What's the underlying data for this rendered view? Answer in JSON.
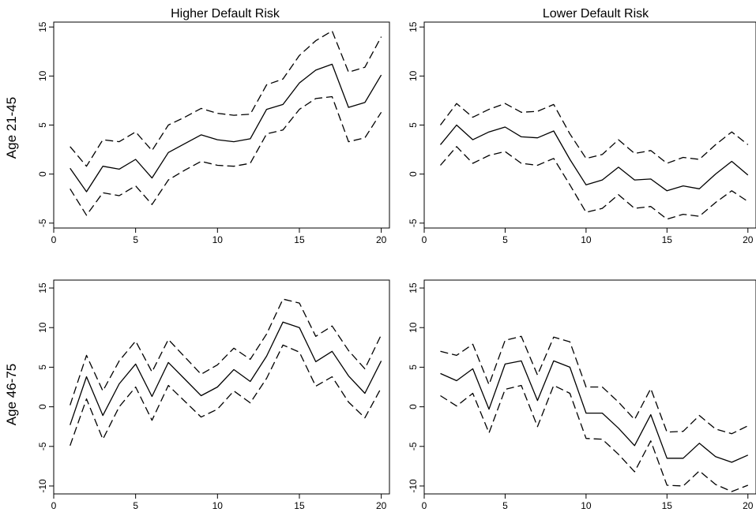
{
  "figure": {
    "column_titles": [
      "Higher Default Risk",
      "Lower Default Risk"
    ],
    "row_titles": [
      "Age 21-45",
      "Age 46-75"
    ]
  },
  "chart_data": [
    {
      "type": "line",
      "title": "Higher Default Risk",
      "row_label": "Age 21-45",
      "x": [
        1,
        2,
        3,
        4,
        5,
        6,
        7,
        8,
        9,
        10,
        11,
        12,
        13,
        14,
        15,
        16,
        17,
        18,
        19,
        20
      ],
      "series": [
        {
          "style": "solid",
          "values": [
            0.6,
            -1.8,
            0.8,
            0.5,
            1.5,
            -0.4,
            2.2,
            3.1,
            4.0,
            3.5,
            3.3,
            3.6,
            6.6,
            7.1,
            9.3,
            10.6,
            11.2,
            6.8,
            7.3,
            10.1
          ]
        },
        {
          "style": "dashed",
          "values": [
            2.8,
            0.8,
            3.5,
            3.3,
            4.3,
            2.4,
            5.0,
            5.8,
            6.7,
            6.2,
            6.0,
            6.1,
            9.1,
            9.7,
            12.1,
            13.6,
            14.6,
            10.4,
            10.9,
            14.0
          ]
        },
        {
          "style": "dashed",
          "values": [
            -1.5,
            -4.2,
            -1.9,
            -2.2,
            -1.2,
            -3.1,
            -0.6,
            0.4,
            1.3,
            0.9,
            0.8,
            1.1,
            4.1,
            4.5,
            6.6,
            7.7,
            7.9,
            3.3,
            3.7,
            6.3
          ]
        }
      ],
      "xlim": [
        0,
        20.5
      ],
      "ylim": [
        -5.5,
        15.5
      ],
      "xticks": [
        0,
        5,
        10,
        15,
        20
      ],
      "yticks": [
        -5,
        0,
        5,
        10,
        15
      ],
      "xtick_labels": [
        "0",
        "5",
        "10",
        "15",
        "20"
      ],
      "ytick_labels": [
        "-5",
        "0",
        "5",
        "10",
        "15"
      ],
      "grid": false,
      "legend": "none"
    },
    {
      "type": "line",
      "title": "Lower Default Risk",
      "row_label": "Age 21-45",
      "x": [
        1,
        2,
        3,
        4,
        5,
        6,
        7,
        8,
        9,
        10,
        11,
        12,
        13,
        14,
        15,
        16,
        17,
        18,
        19,
        20
      ],
      "series": [
        {
          "style": "solid",
          "values": [
            3.0,
            5.0,
            3.5,
            4.3,
            4.8,
            3.8,
            3.7,
            4.4,
            1.5,
            -1.1,
            -0.6,
            0.7,
            -0.6,
            -0.5,
            -1.7,
            -1.2,
            -1.5,
            0.0,
            1.3,
            -0.1
          ]
        },
        {
          "style": "dashed",
          "values": [
            5.0,
            7.2,
            5.8,
            6.6,
            7.2,
            6.3,
            6.4,
            7.1,
            4.1,
            1.6,
            2.0,
            3.5,
            2.1,
            2.4,
            1.1,
            1.7,
            1.5,
            3.0,
            4.3,
            3.0
          ]
        },
        {
          "style": "dashed",
          "values": [
            0.9,
            2.8,
            1.1,
            1.9,
            2.3,
            1.1,
            0.9,
            1.6,
            -1.1,
            -3.9,
            -3.5,
            -2.1,
            -3.5,
            -3.3,
            -4.6,
            -4.1,
            -4.3,
            -2.9,
            -1.7,
            -2.8
          ]
        }
      ],
      "xlim": [
        0,
        20.5
      ],
      "ylim": [
        -5.5,
        15.5
      ],
      "xticks": [
        0,
        5,
        10,
        15,
        20
      ],
      "yticks": [
        -5,
        0,
        5,
        10,
        15
      ],
      "xtick_labels": [
        "0",
        "5",
        "10",
        "15",
        "20"
      ],
      "ytick_labels": [
        "-5",
        "0",
        "5",
        "10",
        "15"
      ],
      "grid": false,
      "legend": "none"
    },
    {
      "type": "line",
      "title": "Higher Default Risk",
      "row_label": "Age 46-75",
      "x": [
        1,
        2,
        3,
        4,
        5,
        6,
        7,
        8,
        9,
        10,
        11,
        12,
        13,
        14,
        15,
        16,
        17,
        18,
        19,
        20
      ],
      "series": [
        {
          "style": "solid",
          "values": [
            -2.3,
            3.8,
            -1.1,
            2.9,
            5.4,
            1.3,
            5.6,
            3.5,
            1.4,
            2.5,
            4.7,
            3.2,
            6.4,
            10.7,
            10.0,
            5.7,
            7.0,
            3.9,
            1.7,
            5.8
          ]
        },
        {
          "style": "dashed",
          "values": [
            0.2,
            6.5,
            2.0,
            5.8,
            8.3,
            4.4,
            8.5,
            6.3,
            4.1,
            5.3,
            7.4,
            6.0,
            9.2,
            13.6,
            13.1,
            8.9,
            10.2,
            7.1,
            4.8,
            9.1
          ]
        },
        {
          "style": "dashed",
          "values": [
            -4.9,
            1.0,
            -4.1,
            0.0,
            2.5,
            -1.7,
            2.7,
            0.7,
            -1.3,
            -0.3,
            2.0,
            0.5,
            3.6,
            7.8,
            6.9,
            2.6,
            3.8,
            0.6,
            -1.4,
            2.4
          ]
        }
      ],
      "xlim": [
        0,
        20.5
      ],
      "ylim": [
        -11,
        16
      ],
      "xticks": [
        0,
        5,
        10,
        15,
        20
      ],
      "yticks": [
        -10,
        -5,
        0,
        5,
        10,
        15
      ],
      "xtick_labels": [
        "0",
        "5",
        "10",
        "15",
        "20"
      ],
      "ytick_labels": [
        "-10",
        "-5",
        "0",
        "5",
        "10",
        "15"
      ],
      "grid": false,
      "legend": "none"
    },
    {
      "type": "line",
      "title": "Lower Default Risk",
      "row_label": "Age 46-75",
      "x": [
        1,
        2,
        3,
        4,
        5,
        6,
        7,
        8,
        9,
        10,
        11,
        12,
        13,
        14,
        15,
        16,
        17,
        18,
        19,
        20
      ],
      "series": [
        {
          "style": "solid",
          "values": [
            4.2,
            3.3,
            4.8,
            -0.3,
            5.4,
            5.8,
            0.8,
            5.8,
            5.0,
            -0.8,
            -0.8,
            -2.7,
            -4.9,
            -1.0,
            -6.5,
            -6.5,
            -4.6,
            -6.3,
            -7.0,
            -6.1
          ]
        },
        {
          "style": "dashed",
          "values": [
            7.0,
            6.5,
            7.9,
            2.8,
            8.4,
            8.9,
            4.0,
            8.8,
            8.2,
            2.5,
            2.5,
            0.6,
            -1.6,
            2.3,
            -3.2,
            -3.1,
            -1.1,
            -2.8,
            -3.4,
            -2.4
          ]
        },
        {
          "style": "dashed",
          "values": [
            1.4,
            0.1,
            1.7,
            -3.3,
            2.2,
            2.7,
            -2.5,
            2.7,
            1.7,
            -4.0,
            -4.1,
            -6.0,
            -8.2,
            -4.3,
            -9.9,
            -10.0,
            -8.1,
            -9.8,
            -10.7,
            -9.9
          ]
        }
      ],
      "xlim": [
        0,
        20.5
      ],
      "ylim": [
        -11,
        16
      ],
      "xticks": [
        0,
        5,
        10,
        15,
        20
      ],
      "yticks": [
        -10,
        -5,
        0,
        5,
        10,
        15
      ],
      "xtick_labels": [
        "0",
        "5",
        "10",
        "15",
        "20"
      ],
      "ytick_labels": [
        "-10",
        "-5",
        "0",
        "5",
        "10",
        "15"
      ],
      "grid": false,
      "legend": "none"
    }
  ]
}
